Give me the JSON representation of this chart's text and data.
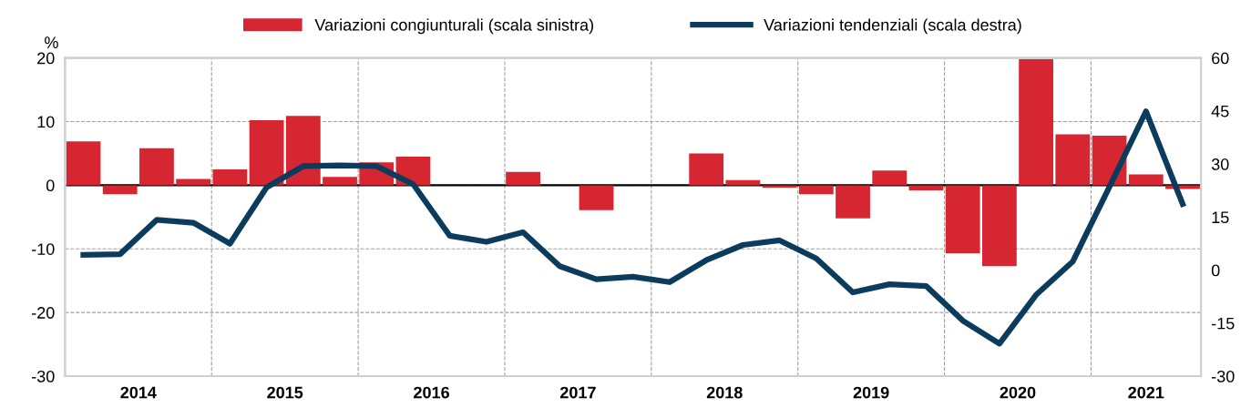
{
  "chart_data": {
    "type": "bar",
    "ylabel": "%",
    "x": [
      2014.125,
      2014.375,
      2014.625,
      2014.875,
      2015.125,
      2015.375,
      2015.625,
      2015.875,
      2016.125,
      2016.375,
      2016.625,
      2016.875,
      2017.125,
      2017.375,
      2017.625,
      2017.875,
      2018.125,
      2018.375,
      2018.625,
      2018.875,
      2019.125,
      2019.375,
      2019.625,
      2019.875,
      2020.125,
      2020.375,
      2020.625,
      2020.875,
      2021.125,
      2021.375,
      2021.625
    ],
    "series": [
      {
        "name": "Variazioni congiunturali (scala sinistra)",
        "color": "#d62631",
        "values": [
          6.9,
          -1.4,
          5.8,
          1.0,
          2.5,
          10.2,
          10.9,
          1.3,
          3.6,
          4.5,
          0,
          0,
          2.1,
          0,
          -3.9,
          0,
          0,
          5.0,
          0.8,
          -0.4,
          -1.4,
          -5.2,
          2.3,
          -0.8,
          -10.7,
          -12.7,
          19.8,
          8.0,
          7.8,
          1.7,
          -0.6
        ]
      },
      {
        "name": "Variazioni tendenziali (scala destra)",
        "type": "line",
        "axis": "y2",
        "color": "#0b3c5d",
        "values": [
          4.3,
          4.5,
          14.2,
          13.4,
          7.5,
          23.4,
          29.4,
          29.6,
          29.4,
          24.3,
          9.7,
          8.0,
          10.7,
          1.1,
          -2.6,
          -1.9,
          -3.4,
          2.8,
          7.1,
          8.4,
          3.3,
          -6.3,
          -4.0,
          -4.5,
          -14.3,
          -20.8,
          -7.0,
          2.4,
          23.5,
          44.9,
          18.7
        ]
      }
    ],
    "xlim": [
      2014,
      2021.75
    ],
    "xticks": [
      {
        "value": 2015,
        "label": null
      },
      {
        "value": 2016,
        "label": null
      },
      {
        "value": 2017,
        "label": null
      },
      {
        "value": 2018,
        "label": null
      },
      {
        "value": 2019,
        "label": null
      },
      {
        "value": 2020,
        "label": null
      },
      {
        "value": 2021,
        "label": null
      },
      {
        "value": 2014.5,
        "label": "2014"
      },
      {
        "value": 2015.5,
        "label": "2015"
      },
      {
        "value": 2016.5,
        "label": "2016"
      },
      {
        "value": 2017.5,
        "label": "2017"
      },
      {
        "value": 2018.5,
        "label": "2018"
      },
      {
        "value": 2019.5,
        "label": "2019"
      },
      {
        "value": 2020.5,
        "label": "2020"
      },
      {
        "value": 2021.375,
        "label": "2021"
      }
    ],
    "ylim": [
      -30,
      20
    ],
    "yticks": [
      -30,
      -20,
      -10,
      0,
      10,
      20
    ],
    "y2lim": [
      -30,
      60
    ],
    "y2ticks": [
      -30,
      -15,
      0,
      15,
      30,
      45,
      60
    ],
    "ref_lines": [
      {
        "axis": "y",
        "value": 0,
        "color": "#000000"
      }
    ],
    "grid": true,
    "legend": "top",
    "line_style": "solid",
    "marker": "none"
  }
}
